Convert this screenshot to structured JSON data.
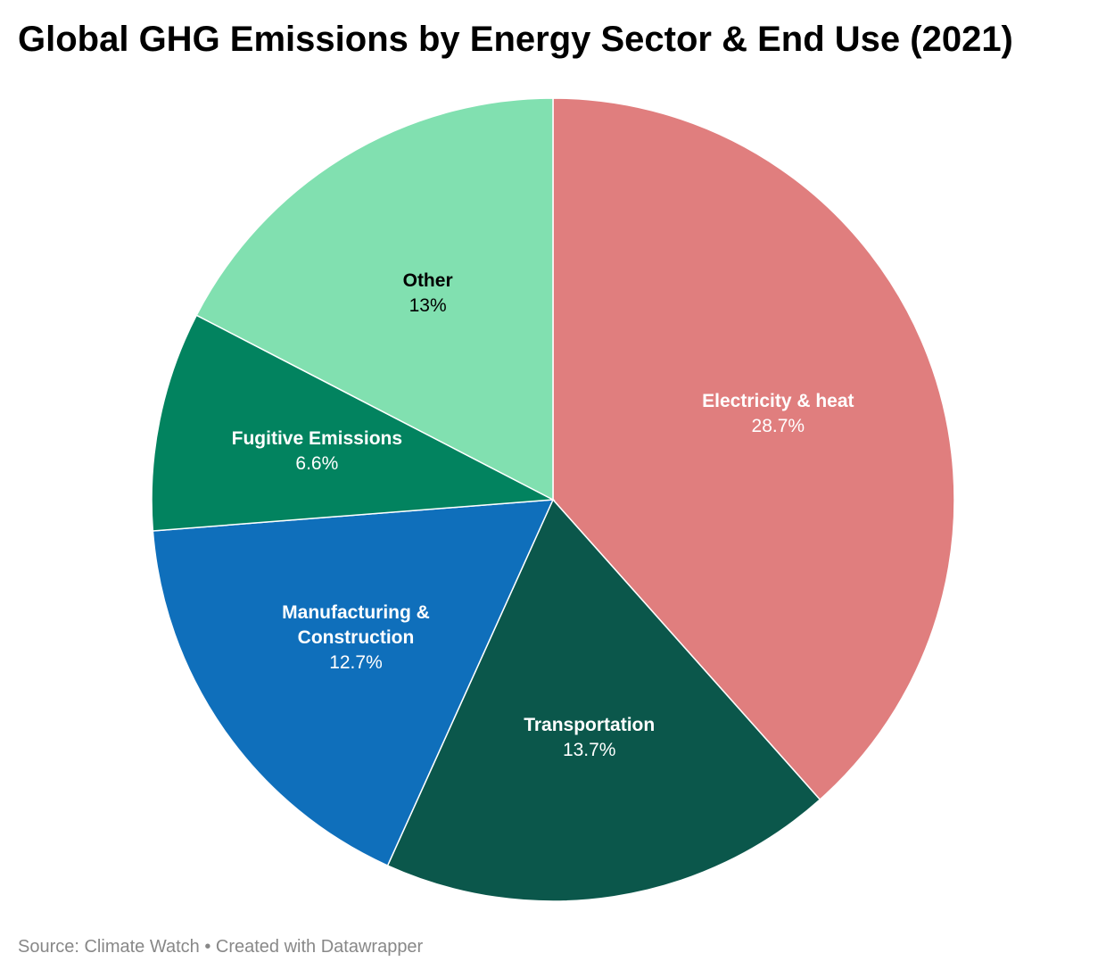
{
  "chart_data": {
    "type": "pie",
    "title": "Global GHG Emissions by Energy Sector & End Use (2021)",
    "categories": [
      "Electricity & heat",
      "Transportation",
      "Manufacturing & Construction",
      "Fugitive Emissions",
      "Other"
    ],
    "values": [
      28.7,
      13.7,
      12.7,
      6.6,
      13
    ],
    "value_labels": [
      "28.7%",
      "13.7%",
      "12.7%",
      "6.6%",
      "13%"
    ],
    "colors": [
      "#e07e7e",
      "#0b574b",
      "#0f6fbb",
      "#02835f",
      "#81e0b0"
    ],
    "footer": "Source: Climate Watch • Created with Datawrapper"
  }
}
